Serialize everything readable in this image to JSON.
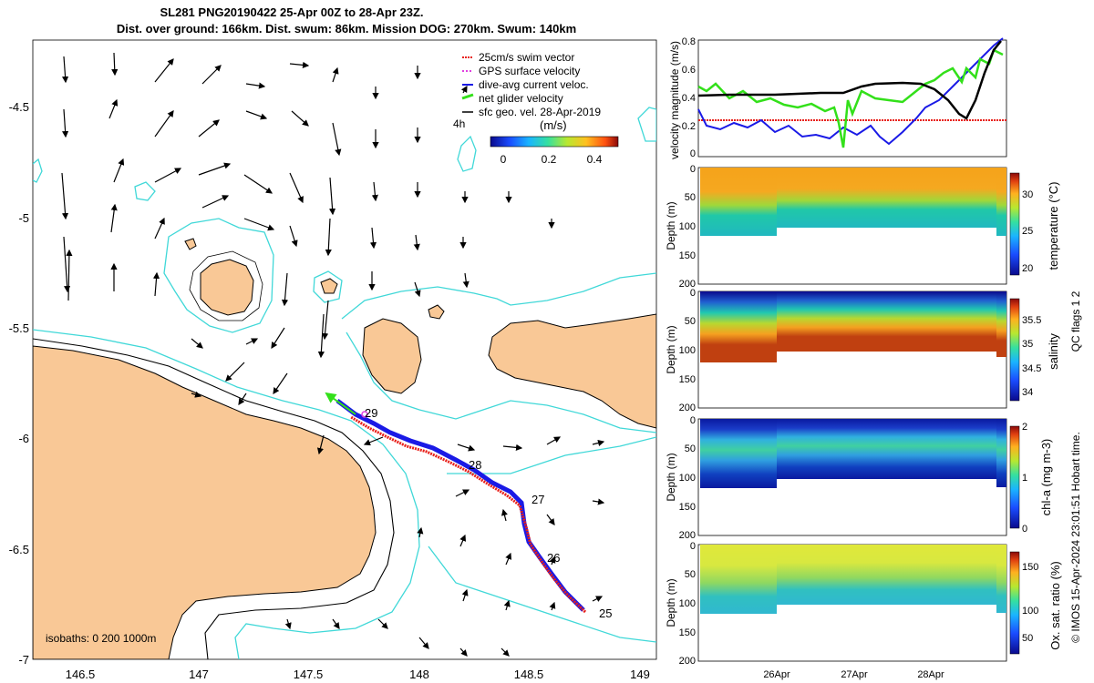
{
  "title_line1": "SL281 PNG20190422 25-Apr 00Z to 28-Apr 23Z.",
  "title_line2": "Dist. over ground: 166km. Dist. swum: 86km. Mission DOG: 270km. Swum: 140km",
  "map": {
    "x_ticks": [
      "146.5",
      "147",
      "147.5",
      "148",
      "148.5",
      "149"
    ],
    "y_ticks": [
      "-4.5",
      "-5",
      "-5.5",
      "-6",
      "-6.5",
      "-7"
    ],
    "isobath_label": "isobaths: 0   200  1000m",
    "legend": [
      {
        "label": "25cm/s swim vector",
        "color": "#e8201a"
      },
      {
        "label": "GPS surface velocity",
        "color": "#e040e0"
      },
      {
        "label": "dive-avg current veloc.",
        "color": "#1a1ae6"
      },
      {
        "label": "net glider velocity",
        "color": "#33e01a"
      },
      {
        "label": "sfc geo. vel. 28-Apr-2019",
        "color": "#000000"
      }
    ],
    "legend_extra": "4h",
    "colorbar_label": "(m/s)",
    "colorbar_ticks": [
      "0",
      "0.2",
      "0.4"
    ],
    "day_labels": [
      "25",
      "26",
      "27",
      "28",
      "29"
    ],
    "colors": {
      "land": "#f9c896",
      "contour200": "#40d8d8",
      "track": "#1a1ae6",
      "swim": "#e8201a"
    }
  },
  "velocity_panel": {
    "ylabel": "velocity magnitude (m/s)",
    "y_ticks": [
      "0",
      "0.2",
      "0.4",
      "0.6",
      "0.8"
    ]
  },
  "depth_panels": [
    {
      "ylabel": "Depth (m)",
      "cbar_label": "temperature (°C)",
      "cbar_ticks": [
        "20",
        "25",
        "30"
      ]
    },
    {
      "ylabel": "Depth (m)",
      "cbar_label": "salinity",
      "cbar_ticks": [
        "34",
        "34.5",
        "35",
        "35.5"
      ]
    },
    {
      "ylabel": "Depth (m)",
      "cbar_label": "chl-a (mg m-3)",
      "cbar_ticks": [
        "0",
        "1",
        "2"
      ]
    },
    {
      "ylabel": "Depth (m)",
      "cbar_label": "Ox. sat. ratio (%)",
      "cbar_ticks": [
        "50",
        "100",
        "150"
      ]
    }
  ],
  "depth_ticks": [
    "0",
    "50",
    "100",
    "150",
    "200"
  ],
  "date_ticks": [
    "26Apr",
    "27Apr",
    "28Apr"
  ],
  "qc_label": "QC flags 1  2",
  "footer": "© IMOS 15-Apr-2024 23:01:51 Hobart time."
}
